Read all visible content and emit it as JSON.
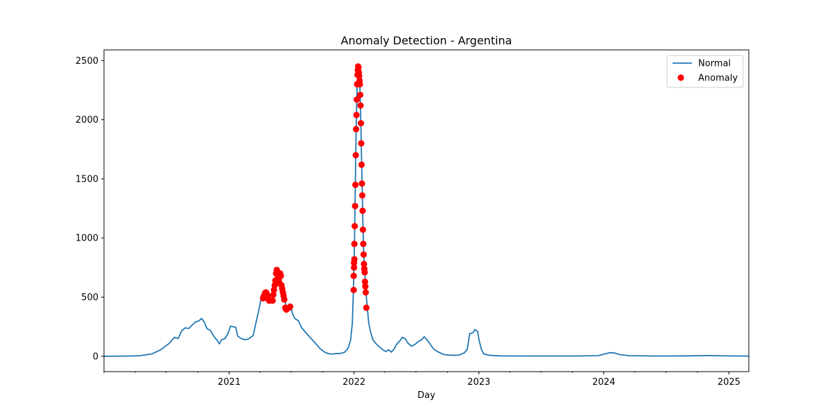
{
  "chart_data": {
    "type": "line",
    "title": "Anomaly Detection - Argentina",
    "xlabel": "Day",
    "ylabel": "",
    "x_axis_kind": "date",
    "xlim": [
      "2020-01-01",
      "2025-02-28"
    ],
    "ylim": [
      -130,
      2590
    ],
    "x_ticks": [
      {
        "label": "2021",
        "date": "2021-01-01"
      },
      {
        "label": "2022",
        "date": "2022-01-01"
      },
      {
        "label": "2023",
        "date": "2023-01-01"
      },
      {
        "label": "2024",
        "date": "2024-01-01"
      },
      {
        "label": "2025",
        "date": "2025-01-01"
      }
    ],
    "y_ticks": [
      0,
      500,
      1000,
      1500,
      2000,
      2500
    ],
    "grid": false,
    "legend": {
      "position": "top-right",
      "entries": [
        "Normal",
        "Anomaly"
      ]
    },
    "colors": {
      "line": "#1f77b4",
      "anomaly": "#ff0000"
    },
    "series": [
      {
        "name": "Normal",
        "style": "line",
        "points": [
          [
            "2020-01-01",
            0
          ],
          [
            "2020-03-01",
            1
          ],
          [
            "2020-04-15",
            4
          ],
          [
            "2020-05-20",
            20
          ],
          [
            "2020-06-15",
            55
          ],
          [
            "2020-07-10",
            110
          ],
          [
            "2020-07-25",
            160
          ],
          [
            "2020-08-05",
            150
          ],
          [
            "2020-08-15",
            215
          ],
          [
            "2020-08-25",
            240
          ],
          [
            "2020-09-05",
            235
          ],
          [
            "2020-09-15",
            265
          ],
          [
            "2020-09-25",
            290
          ],
          [
            "2020-10-05",
            300
          ],
          [
            "2020-10-12",
            320
          ],
          [
            "2020-10-20",
            290
          ],
          [
            "2020-10-28",
            235
          ],
          [
            "2020-11-08",
            215
          ],
          [
            "2020-11-18",
            165
          ],
          [
            "2020-11-28",
            130
          ],
          [
            "2020-12-03",
            105
          ],
          [
            "2020-12-10",
            140
          ],
          [
            "2020-12-20",
            150
          ],
          [
            "2020-12-28",
            190
          ],
          [
            "2021-01-05",
            255
          ],
          [
            "2021-01-12",
            250
          ],
          [
            "2021-01-20",
            245
          ],
          [
            "2021-01-26",
            170
          ],
          [
            "2021-02-05",
            150
          ],
          [
            "2021-02-15",
            140
          ],
          [
            "2021-02-25",
            145
          ],
          [
            "2021-03-05",
            160
          ],
          [
            "2021-03-12",
            175
          ],
          [
            "2021-03-20",
            280
          ],
          [
            "2021-03-27",
            370
          ],
          [
            "2021-04-03",
            470
          ],
          [
            "2021-04-10",
            490
          ],
          [
            "2021-04-15",
            520
          ],
          [
            "2021-04-20",
            540
          ],
          [
            "2021-04-25",
            510
          ],
          [
            "2021-04-30",
            470
          ],
          [
            "2021-05-05",
            460
          ],
          [
            "2021-05-10",
            520
          ],
          [
            "2021-05-15",
            640
          ],
          [
            "2021-05-20",
            730
          ],
          [
            "2021-05-25",
            700
          ],
          [
            "2021-05-30",
            640
          ],
          [
            "2021-06-05",
            560
          ],
          [
            "2021-06-10",
            510
          ],
          [
            "2021-06-15",
            440
          ],
          [
            "2021-06-20",
            395
          ],
          [
            "2021-06-25",
            400
          ],
          [
            "2021-07-01",
            410
          ],
          [
            "2021-07-05",
            360
          ],
          [
            "2021-07-12",
            320
          ],
          [
            "2021-07-22",
            300
          ],
          [
            "2021-08-01",
            240
          ],
          [
            "2021-08-10",
            210
          ],
          [
            "2021-08-25",
            160
          ],
          [
            "2021-09-10",
            110
          ],
          [
            "2021-09-25",
            60
          ],
          [
            "2021-10-10",
            30
          ],
          [
            "2021-10-25",
            18
          ],
          [
            "2021-11-10",
            22
          ],
          [
            "2021-11-25",
            25
          ],
          [
            "2021-12-05",
            35
          ],
          [
            "2021-12-15",
            70
          ],
          [
            "2021-12-22",
            140
          ],
          [
            "2021-12-27",
            280
          ],
          [
            "2021-12-30",
            550
          ],
          [
            "2022-01-02",
            900
          ],
          [
            "2022-01-04",
            1300
          ],
          [
            "2022-01-06",
            1700
          ],
          [
            "2022-01-08",
            2050
          ],
          [
            "2022-01-10",
            2300
          ],
          [
            "2022-01-12",
            2420
          ],
          [
            "2022-01-13",
            2450
          ],
          [
            "2022-01-15",
            2420
          ],
          [
            "2022-01-17",
            2350
          ],
          [
            "2022-01-19",
            2200
          ],
          [
            "2022-01-21",
            1950
          ],
          [
            "2022-01-23",
            1650
          ],
          [
            "2022-01-25",
            1400
          ],
          [
            "2022-01-27",
            1100
          ],
          [
            "2022-01-29",
            900
          ],
          [
            "2022-01-31",
            760
          ],
          [
            "2022-02-02",
            680
          ],
          [
            "2022-02-04",
            580
          ],
          [
            "2022-02-06",
            500
          ],
          [
            "2022-02-09",
            400
          ],
          [
            "2022-02-13",
            280
          ],
          [
            "2022-02-18",
            210
          ],
          [
            "2022-02-25",
            140
          ],
          [
            "2022-03-05",
            110
          ],
          [
            "2022-03-12",
            90
          ],
          [
            "2022-03-20",
            70
          ],
          [
            "2022-03-28",
            50
          ],
          [
            "2022-04-05",
            40
          ],
          [
            "2022-04-12",
            55
          ],
          [
            "2022-04-20",
            35
          ],
          [
            "2022-04-28",
            60
          ],
          [
            "2022-05-05",
            100
          ],
          [
            "2022-05-15",
            130
          ],
          [
            "2022-05-22",
            160
          ],
          [
            "2022-05-30",
            150
          ],
          [
            "2022-06-08",
            110
          ],
          [
            "2022-06-18",
            85
          ],
          [
            "2022-06-28",
            100
          ],
          [
            "2022-07-08",
            125
          ],
          [
            "2022-07-18",
            140
          ],
          [
            "2022-07-25",
            165
          ],
          [
            "2022-08-02",
            140
          ],
          [
            "2022-08-12",
            100
          ],
          [
            "2022-08-22",
            60
          ],
          [
            "2022-09-05",
            35
          ],
          [
            "2022-09-20",
            15
          ],
          [
            "2022-10-05",
            10
          ],
          [
            "2022-10-20",
            8
          ],
          [
            "2022-11-05",
            10
          ],
          [
            "2022-11-20",
            30
          ],
          [
            "2022-11-28",
            60
          ],
          [
            "2022-12-05",
            190
          ],
          [
            "2022-12-15",
            200
          ],
          [
            "2022-12-20",
            225
          ],
          [
            "2022-12-28",
            210
          ],
          [
            "2023-01-02",
            130
          ],
          [
            "2023-01-08",
            60
          ],
          [
            "2023-01-15",
            20
          ],
          [
            "2023-02-01",
            8
          ],
          [
            "2023-03-01",
            3
          ],
          [
            "2023-06-01",
            2
          ],
          [
            "2023-10-01",
            2
          ],
          [
            "2023-12-15",
            5
          ],
          [
            "2024-01-05",
            20
          ],
          [
            "2024-01-18",
            30
          ],
          [
            "2024-02-01",
            28
          ],
          [
            "2024-02-15",
            15
          ],
          [
            "2024-03-15",
            5
          ],
          [
            "2024-06-01",
            2
          ],
          [
            "2024-09-01",
            3
          ],
          [
            "2024-11-01",
            6
          ],
          [
            "2024-12-01",
            4
          ],
          [
            "2025-02-28",
            1
          ]
        ]
      },
      {
        "name": "Anomaly",
        "style": "scatter",
        "points": [
          [
            "2021-04-10",
            490
          ],
          [
            "2021-04-12",
            505
          ],
          [
            "2021-04-14",
            520
          ],
          [
            "2021-04-16",
            535
          ],
          [
            "2021-04-18",
            540
          ],
          [
            "2021-04-20",
            535
          ],
          [
            "2021-04-22",
            520
          ],
          [
            "2021-04-24",
            500
          ],
          [
            "2021-04-26",
            480
          ],
          [
            "2021-04-28",
            470
          ],
          [
            "2021-05-08",
            470
          ],
          [
            "2021-05-10",
            520
          ],
          [
            "2021-05-12",
            560
          ],
          [
            "2021-05-14",
            600
          ],
          [
            "2021-05-16",
            640
          ],
          [
            "2021-05-18",
            700
          ],
          [
            "2021-05-20",
            730
          ],
          [
            "2021-05-22",
            710
          ],
          [
            "2021-05-24",
            680
          ],
          [
            "2021-05-26",
            650
          ],
          [
            "2021-05-28",
            620
          ],
          [
            "2021-05-30",
            700
          ],
          [
            "2021-06-01",
            680
          ],
          [
            "2021-06-03",
            600
          ],
          [
            "2021-06-05",
            570
          ],
          [
            "2021-06-07",
            540
          ],
          [
            "2021-06-09",
            510
          ],
          [
            "2021-06-11",
            480
          ],
          [
            "2021-06-14",
            410
          ],
          [
            "2021-06-17",
            395
          ],
          [
            "2021-06-25",
            410
          ],
          [
            "2021-06-28",
            420
          ],
          [
            "2021-12-31",
            560
          ],
          [
            "2021-12-31",
            680
          ],
          [
            "2022-01-01",
            750
          ],
          [
            "2022-01-01",
            790
          ],
          [
            "2022-01-02",
            820
          ],
          [
            "2022-01-02",
            950
          ],
          [
            "2022-01-03",
            1100
          ],
          [
            "2022-01-04",
            1270
          ],
          [
            "2022-01-05",
            1450
          ],
          [
            "2022-01-06",
            1700
          ],
          [
            "2022-01-07",
            1920
          ],
          [
            "2022-01-08",
            2040
          ],
          [
            "2022-01-09",
            2170
          ],
          [
            "2022-01-10",
            2300
          ],
          [
            "2022-01-11",
            2380
          ],
          [
            "2022-01-12",
            2420
          ],
          [
            "2022-01-13",
            2450
          ],
          [
            "2022-01-14",
            2440
          ],
          [
            "2022-01-15",
            2400
          ],
          [
            "2022-01-16",
            2370
          ],
          [
            "2022-01-17",
            2330
          ],
          [
            "2022-01-18",
            2300
          ],
          [
            "2022-01-19",
            2210
          ],
          [
            "2022-01-20",
            2120
          ],
          [
            "2022-01-21",
            1970
          ],
          [
            "2022-01-22",
            1800
          ],
          [
            "2022-01-23",
            1620
          ],
          [
            "2022-01-24",
            1460
          ],
          [
            "2022-01-25",
            1360
          ],
          [
            "2022-01-26",
            1230
          ],
          [
            "2022-01-27",
            1070
          ],
          [
            "2022-01-28",
            950
          ],
          [
            "2022-01-29",
            860
          ],
          [
            "2022-01-30",
            780
          ],
          [
            "2022-01-31",
            740
          ],
          [
            "2022-02-01",
            710
          ],
          [
            "2022-02-02",
            630
          ],
          [
            "2022-02-03",
            590
          ],
          [
            "2022-02-04",
            540
          ],
          [
            "2022-02-06",
            410
          ]
        ]
      }
    ]
  }
}
